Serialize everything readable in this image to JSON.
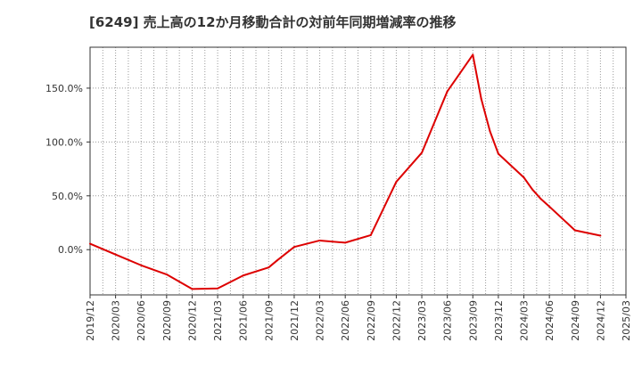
{
  "chart_data": {
    "type": "line",
    "title": "[6249]  売上高の12か月移動合計の対前年同期増減率の推移",
    "xlabel": "",
    "ylabel": "",
    "ylim": [
      -42,
      188
    ],
    "grid": true,
    "y_ticks": [
      {
        "value": 0,
        "label": "0.0%"
      },
      {
        "value": 50,
        "label": "50.0%"
      },
      {
        "value": 100,
        "label": "100.0%"
      },
      {
        "value": 150,
        "label": "150.0%"
      }
    ],
    "categories": [
      "2019/12",
      "2020/03",
      "2020/06",
      "2020/09",
      "2020/12",
      "2021/03",
      "2021/06",
      "2021/09",
      "2021/12",
      "2022/03",
      "2022/06",
      "2022/09",
      "2022/12",
      "2023/03",
      "2023/06",
      "2023/09",
      "2023/12",
      "2024/03",
      "2024/06",
      "2024/09",
      "2024/12",
      "2025/03"
    ],
    "series": [
      {
        "name": "対前年同期増減率",
        "color": "#dd0000",
        "points": [
          {
            "x": 0,
            "y": 5.5
          },
          {
            "x": 1,
            "y": -4.5
          },
          {
            "x": 2,
            "y": -14.5
          },
          {
            "x": 3,
            "y": -23
          },
          {
            "x": 4,
            "y": -36.5
          },
          {
            "x": 5,
            "y": -36
          },
          {
            "x": 6,
            "y": -24
          },
          {
            "x": 7,
            "y": -16.5
          },
          {
            "x": 7.33,
            "y": -10
          },
          {
            "x": 8,
            "y": 2.5
          },
          {
            "x": 9,
            "y": 8.5
          },
          {
            "x": 10,
            "y": 6.5
          },
          {
            "x": 11,
            "y": 13.5
          },
          {
            "x": 12,
            "y": 63
          },
          {
            "x": 13,
            "y": 90
          },
          {
            "x": 14,
            "y": 147
          },
          {
            "x": 15,
            "y": 181
          },
          {
            "x": 15.33,
            "y": 140
          },
          {
            "x": 15.67,
            "y": 110
          },
          {
            "x": 16,
            "y": 89
          },
          {
            "x": 17,
            "y": 67
          },
          {
            "x": 17.33,
            "y": 56
          },
          {
            "x": 17.67,
            "y": 47
          },
          {
            "x": 18,
            "y": 40
          },
          {
            "x": 18.5,
            "y": 29
          },
          {
            "x": 19,
            "y": 18
          },
          {
            "x": 20,
            "y": 13
          }
        ]
      }
    ]
  }
}
